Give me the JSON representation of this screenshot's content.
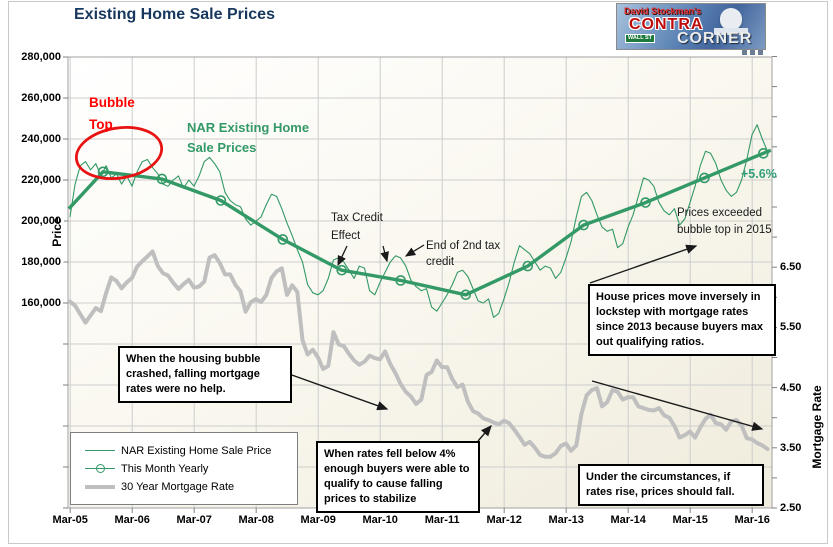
{
  "title": "Existing Home Sale Prices",
  "logo": {
    "top_line": "David Stockman's",
    "word1": "CONTRA",
    "word2": "CORNER",
    "street_sign": "WALL ST"
  },
  "axes": {
    "price": {
      "title": "Price",
      "tick_labels": [
        "280,000",
        "260,000",
        "240,000",
        "220,000",
        "200,000",
        "180,000",
        "160,000"
      ],
      "tick_values": [
        280000,
        260000,
        240000,
        220000,
        200000,
        180000,
        160000
      ]
    },
    "rate": {
      "title": "Mortgage Rate",
      "tick_labels": [
        "6.50",
        "5.50",
        "4.50",
        "3.50",
        "2.50"
      ],
      "tick_values": [
        6.5,
        5.5,
        4.5,
        3.5,
        2.5
      ]
    },
    "x": {
      "tick_labels": [
        "Mar-05",
        "Mar-06",
        "Mar-07",
        "Mar-08",
        "Mar-09",
        "Mar-10",
        "Mar-11",
        "Mar-12",
        "Mar-13",
        "Mar-14",
        "Mar-15",
        "Mar-16"
      ],
      "tick_values": [
        2005.17,
        2006.17,
        2007.17,
        2008.17,
        2009.17,
        2010.17,
        2011.17,
        2012.17,
        2013.17,
        2014.17,
        2015.17,
        2016.17
      ]
    }
  },
  "legend": {
    "items": [
      {
        "label": "NAR Existing Home Sale Price",
        "style": "thin-green-line"
      },
      {
        "label": "This Month Yearly",
        "style": "green-line-circle-marker"
      },
      {
        "label": "30 Year Mortgage Rate",
        "style": "thick-gray-line"
      }
    ]
  },
  "annotations": {
    "bubble_top": "Bubble Top",
    "nar_series_label": "NAR Existing Home Sale Prices",
    "tax_credit": "Tax Credit Effect",
    "end_tax_credit": "End of 2nd tax credit",
    "prices_exceeded": "Prices exceeded bubble top in 2015",
    "pct_change": "+5.6%",
    "box_bubble_crash": "When the housing bubble crashed, falling mortgage rates were no help.",
    "box_rates_below_4": "When rates fell below 4% enough buyers were able to qualify to cause falling prices to stabilize",
    "box_lockstep": "House prices move inversely in lockstep with mortgage rates since 2013 because buyers max out qualifying ratios.",
    "box_rates_rise": "Under the circumstances, if rates rise, prices should fall."
  },
  "chart_data": {
    "type": "line",
    "title": "Existing Home Sale Prices",
    "x_axis": {
      "label": "",
      "start": "Mar-2005",
      "end": "Jun-2016",
      "ticks_every": "1 year",
      "grid": true
    },
    "price_axis": {
      "label": "Price",
      "range": [
        60000,
        280000
      ],
      "labeled_range": [
        160000,
        280000
      ],
      "step": 20000,
      "side": "left"
    },
    "rate_axis": {
      "label": "Mortgage Rate",
      "range": [
        2.5,
        10.0
      ],
      "labeled_range": [
        2.5,
        6.5
      ],
      "step": 1.0,
      "side": "right"
    },
    "series": [
      {
        "name": "NAR Existing Home Sale Price",
        "axis": "price",
        "frequency": "monthly",
        "start_month": "2005-03",
        "values_thousands": [
          202,
          218,
          227,
          229,
          225,
          228,
          222,
          227,
          221,
          223,
          218,
          222,
          217,
          224,
          229,
          230,
          226,
          223,
          218,
          217,
          220,
          222,
          216,
          220,
          217,
          222,
          229,
          231,
          228,
          224,
          214,
          210,
          208,
          207,
          201,
          198,
          200,
          202,
          208,
          213,
          212,
          206,
          199,
          193,
          186,
          180,
          169,
          165,
          164,
          166,
          172,
          181,
          182,
          180,
          176,
          172,
          178,
          177,
          166,
          164,
          170,
          175,
          180,
          183,
          182,
          178,
          171,
          168,
          166,
          167,
          158,
          156,
          160,
          164,
          169,
          175,
          176,
          173,
          167,
          161,
          160,
          162,
          153,
          155,
          162,
          170,
          180,
          188,
          186,
          184,
          180,
          176,
          178,
          177,
          172,
          175,
          182,
          190,
          202,
          212,
          214,
          210,
          203,
          197,
          195,
          196,
          187,
          189,
          197,
          203,
          212,
          221,
          220,
          217,
          209,
          205,
          203,
          206,
          198,
          201,
          209,
          217,
          227,
          234,
          233,
          228,
          220,
          215,
          212,
          214,
          220,
          230,
          242,
          247,
          240,
          234
        ]
      },
      {
        "name": "This Month Yearly",
        "axis": "price",
        "frequency": "yearly-smoothed",
        "edge_start": {
          "t": 2005.15,
          "value_thousands": 206
        },
        "t": [
          2005.7,
          2006.65,
          2007.6,
          2008.6,
          2009.55,
          2010.5,
          2011.55,
          2012.55,
          2013.45,
          2014.45,
          2015.4,
          2016.35
        ],
        "values_thousands": [
          224,
          220.5,
          210,
          191,
          176,
          171,
          164,
          178,
          198,
          209,
          221,
          233
        ],
        "edge_end": {
          "t": 2016.47,
          "value_thousands": 234.5
        }
      },
      {
        "name": "30 Year Mortgage Rate",
        "axis": "rate",
        "frequency": "monthly",
        "start_month": "2005-03",
        "values_percent": [
          5.93,
          5.86,
          5.72,
          5.58,
          5.7,
          5.82,
          5.77,
          6.07,
          6.33,
          6.27,
          6.15,
          6.25,
          6.32,
          6.51,
          6.6,
          6.68,
          6.76,
          6.52,
          6.4,
          6.36,
          6.24,
          6.14,
          6.22,
          6.29,
          6.16,
          6.18,
          6.26,
          6.66,
          6.7,
          6.57,
          6.38,
          6.38,
          6.21,
          6.1,
          5.76,
          5.92,
          5.97,
          5.92,
          6.04,
          6.32,
          6.43,
          6.48,
          6.04,
          6.2,
          6.09,
          5.29,
          5.05,
          5.13,
          5.0,
          4.81,
          4.86,
          5.42,
          5.22,
          5.19,
          5.06,
          4.95,
          4.88,
          4.93,
          5.03,
          4.99,
          4.97,
          5.1,
          4.89,
          4.74,
          4.56,
          4.43,
          4.35,
          4.23,
          4.3,
          4.71,
          4.76,
          4.95,
          4.84,
          4.84,
          4.64,
          4.51,
          4.55,
          4.27,
          4.11,
          4.07,
          3.99,
          3.96,
          3.92,
          3.89,
          3.95,
          3.91,
          3.8,
          3.68,
          3.55,
          3.6,
          3.5,
          3.38,
          3.35,
          3.35,
          3.41,
          3.53,
          3.57,
          3.45,
          3.54,
          4.07,
          4.37,
          4.46,
          4.49,
          4.19,
          4.26,
          4.46,
          4.43,
          4.3,
          4.34,
          4.34,
          4.19,
          4.16,
          4.13,
          4.12,
          4.16,
          4.04,
          4.0,
          3.86,
          3.67,
          3.71,
          3.77,
          3.67,
          3.84,
          3.98,
          4.05,
          3.91,
          3.89,
          3.8,
          3.94,
          3.96,
          3.87,
          3.66,
          3.64,
          3.58,
          3.54,
          3.48
        ]
      }
    ],
    "colors": {
      "green_series": "#339966",
      "gray_series": "#bfbfbf",
      "grid": "#cdcdcd",
      "title_navy": "#17375E",
      "annotation_red": "#ff0000"
    }
  }
}
